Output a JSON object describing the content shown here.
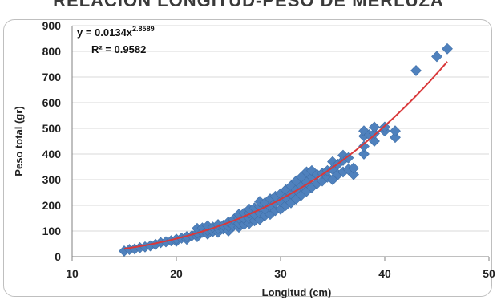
{
  "chart_data": {
    "type": "scatter",
    "title": "RELACION LONGITUD-PESO DE MERLUZA",
    "xlabel": "Longitud (cm)",
    "ylabel": "Peso total (gr)",
    "xlim": [
      10,
      50
    ],
    "ylim": [
      0,
      900
    ],
    "xticks": [
      "10",
      "20",
      "30",
      "40",
      "50"
    ],
    "yticks": [
      "0",
      "100",
      "200",
      "300",
      "400",
      "500",
      "600",
      "700",
      "800",
      "900"
    ],
    "grid": "horizontal",
    "legend": "none",
    "equation": "y = 0.0134x",
    "equation_exponent": "2.8589",
    "r_squared": "R² = 0.9582",
    "marker_color": "#4f81bd",
    "trend_color": "#d9383a",
    "trendline": {
      "a": 0.0134,
      "b": 2.8589,
      "x_range": [
        15,
        46
      ]
    },
    "points": [
      [
        15,
        22
      ],
      [
        15.5,
        28
      ],
      [
        16,
        30
      ],
      [
        16.5,
        35
      ],
      [
        17,
        38
      ],
      [
        17.5,
        42
      ],
      [
        18,
        48
      ],
      [
        18.5,
        55
      ],
      [
        19,
        58
      ],
      [
        19.5,
        62
      ],
      [
        20,
        60
      ],
      [
        20,
        68
      ],
      [
        20.5,
        72
      ],
      [
        21,
        68
      ],
      [
        21,
        78
      ],
      [
        21.5,
        82
      ],
      [
        22,
        78
      ],
      [
        22,
        92
      ],
      [
        22,
        110
      ],
      [
        22.5,
        95
      ],
      [
        22.5,
        112
      ],
      [
        23,
        88
      ],
      [
        23,
        102
      ],
      [
        23,
        120
      ],
      [
        23.5,
        98
      ],
      [
        23.5,
        115
      ],
      [
        24,
        95
      ],
      [
        24,
        110
      ],
      [
        24,
        125
      ],
      [
        24.5,
        108
      ],
      [
        24.5,
        122
      ],
      [
        25,
        100
      ],
      [
        25,
        118
      ],
      [
        25,
        135
      ],
      [
        25.5,
        120
      ],
      [
        25.5,
        145
      ],
      [
        26,
        115
      ],
      [
        26,
        130
      ],
      [
        26,
        150
      ],
      [
        26,
        165
      ],
      [
        26.5,
        125
      ],
      [
        26.5,
        148
      ],
      [
        26.5,
        170
      ],
      [
        27,
        130
      ],
      [
        27,
        150
      ],
      [
        27,
        170
      ],
      [
        27,
        185
      ],
      [
        27.5,
        140
      ],
      [
        27.5,
        165
      ],
      [
        27.5,
        190
      ],
      [
        28,
        145
      ],
      [
        28,
        170
      ],
      [
        28,
        195
      ],
      [
        28,
        215
      ],
      [
        28.5,
        160
      ],
      [
        28.5,
        185
      ],
      [
        28.5,
        210
      ],
      [
        29,
        165
      ],
      [
        29,
        195
      ],
      [
        29,
        225
      ],
      [
        29.5,
        180
      ],
      [
        29.5,
        210
      ],
      [
        29.5,
        235
      ],
      [
        30,
        185
      ],
      [
        30,
        215
      ],
      [
        30,
        245
      ],
      [
        30.5,
        200
      ],
      [
        30.5,
        230
      ],
      [
        30.5,
        260
      ],
      [
        31,
        210
      ],
      [
        31,
        245
      ],
      [
        31,
        275
      ],
      [
        31.5,
        225
      ],
      [
        31.5,
        260
      ],
      [
        31.5,
        295
      ],
      [
        32,
        240
      ],
      [
        32,
        275
      ],
      [
        32,
        310
      ],
      [
        32.5,
        255
      ],
      [
        32.5,
        290
      ],
      [
        32.5,
        330
      ],
      [
        33,
        270
      ],
      [
        33,
        310
      ],
      [
        33,
        335
      ],
      [
        33.5,
        285
      ],
      [
        33.5,
        320
      ],
      [
        34,
        295
      ],
      [
        34,
        325
      ],
      [
        34.5,
        310
      ],
      [
        34.5,
        335
      ],
      [
        35,
        300
      ],
      [
        35,
        340
      ],
      [
        35,
        370
      ],
      [
        35.5,
        320
      ],
      [
        35.5,
        360
      ],
      [
        36,
        330
      ],
      [
        36,
        375
      ],
      [
        36,
        395
      ],
      [
        36.5,
        340
      ],
      [
        36.5,
        385
      ],
      [
        37,
        320
      ],
      [
        37,
        345
      ],
      [
        38,
        400
      ],
      [
        38,
        430
      ],
      [
        38,
        470
      ],
      [
        38,
        490
      ],
      [
        38.5,
        475
      ],
      [
        39,
        450
      ],
      [
        39,
        480
      ],
      [
        39,
        505
      ],
      [
        40,
        490
      ],
      [
        40,
        505
      ],
      [
        41,
        465
      ],
      [
        41,
        490
      ],
      [
        43,
        725
      ],
      [
        45,
        780
      ],
      [
        46,
        810
      ]
    ]
  }
}
